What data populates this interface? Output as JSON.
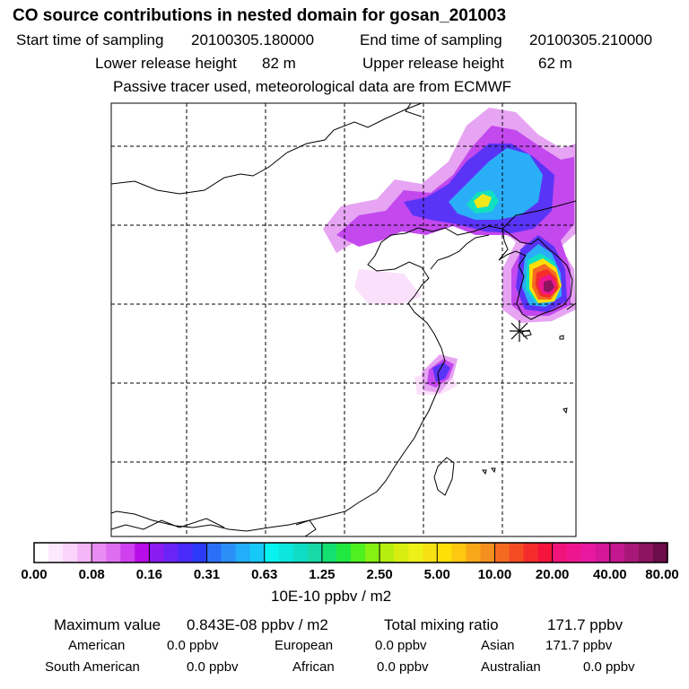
{
  "header": {
    "title": "CO  source contributions in nested domain for gosan_201003",
    "start_label": "Start time of sampling",
    "start_value": "20100305.180000",
    "end_label": "End time of sampling",
    "end_value": "20100305.210000",
    "lower_label": "Lower release height",
    "lower_value": "82 m",
    "upper_label": "Upper release height",
    "upper_value": "62 m",
    "tracer_note": "Passive tracer used, meteorological data are from ECMWF"
  },
  "chart_data": {
    "type": "heatmap",
    "title": "CO  source contributions in nested domain for gosan_201003",
    "colorbar": {
      "ticks": [
        "0.00",
        "0.08",
        "0.16",
        "0.31",
        "0.63",
        "1.25",
        "2.50",
        "5.00",
        "10.00",
        "20.00",
        "40.00",
        "80.00"
      ],
      "unit": "10E-10 ppbv / m2",
      "colors": [
        "#ffffff",
        "#fde9fd",
        "#fbd3fb",
        "#f5b6f7",
        "#e98cf1",
        "#de6ef0",
        "#cf40ef",
        "#b80ce8",
        "#8a1cf0",
        "#6a24f6",
        "#4a2af8",
        "#2a3af7",
        "#2c6ff7",
        "#2b8ff8",
        "#22aef8",
        "#17c9f6",
        "#08f2f0",
        "#0ce6dc",
        "#10dcc4",
        "#18d8a8",
        "#14e070",
        "#20e840",
        "#4ef020",
        "#86f014",
        "#b6ee10",
        "#d8ee10",
        "#eef018",
        "#f6e214",
        "#fee008",
        "#fec810",
        "#f8a818",
        "#f49020",
        "#f46a20",
        "#f44c24",
        "#f42c2c",
        "#f4143c",
        "#f0147a",
        "#ee1690",
        "#e818a0",
        "#d41898",
        "#c41890",
        "#a81878",
        "#8c1460",
        "#6c0c48"
      ]
    },
    "receptor": "gosan",
    "max_value": "0.843E-08"
  },
  "footer": {
    "max_label": "Maximum value",
    "max_value": "0.843E-08 ppbv / m2",
    "total_label": "Total mixing ratio",
    "total_value": "171.7 ppbv",
    "regions": [
      {
        "name": "American",
        "value": "0.0 ppbv"
      },
      {
        "name": "European",
        "value": "0.0 ppbv"
      },
      {
        "name": "Asian",
        "value": "171.7 ppbv"
      },
      {
        "name": "South American",
        "value": "0.0 ppbv"
      },
      {
        "name": "African",
        "value": "0.0 ppbv"
      },
      {
        "name": "Australian",
        "value": "0.0 ppbv"
      }
    ]
  }
}
